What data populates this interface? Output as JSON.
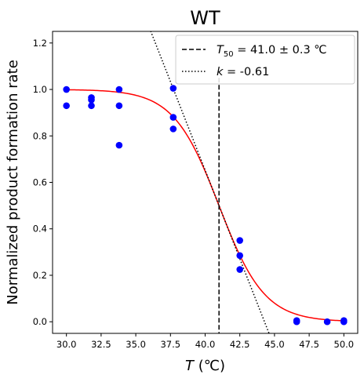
{
  "chart_data": {
    "type": "scatter",
    "title": "WT",
    "xlabel_var": "T",
    "xlabel_unit": " (℃)",
    "ylabel": "Normalized product formation rate",
    "xlim": [
      29.0,
      51.0
    ],
    "ylim": [
      -0.05,
      1.25
    ],
    "x_ticks": [
      "30.0",
      "32.5",
      "35.0",
      "37.5",
      "40.0",
      "42.5",
      "45.0",
      "47.5",
      "50.0"
    ],
    "y_ticks": [
      "0.0",
      "0.2",
      "0.4",
      "0.6",
      "0.8",
      "1.0",
      "1.2"
    ],
    "points": [
      {
        "x": 30.0,
        "y": 1.0
      },
      {
        "x": 30.0,
        "y": 0.93
      },
      {
        "x": 31.8,
        "y": 0.965
      },
      {
        "x": 31.8,
        "y": 0.955
      },
      {
        "x": 31.8,
        "y": 0.93
      },
      {
        "x": 33.8,
        "y": 1.0
      },
      {
        "x": 33.8,
        "y": 0.93
      },
      {
        "x": 33.8,
        "y": 0.76
      },
      {
        "x": 37.7,
        "y": 1.005
      },
      {
        "x": 37.7,
        "y": 0.88
      },
      {
        "x": 37.7,
        "y": 0.83
      },
      {
        "x": 42.5,
        "y": 0.35
      },
      {
        "x": 42.5,
        "y": 0.285
      },
      {
        "x": 42.5,
        "y": 0.225
      },
      {
        "x": 46.6,
        "y": 0.005
      },
      {
        "x": 46.6,
        "y": 0.0
      },
      {
        "x": 48.8,
        "y": 0.0
      },
      {
        "x": 50.0,
        "y": 0.005
      },
      {
        "x": 50.0,
        "y": 0.0
      }
    ],
    "fit": {
      "type": "sigmoid",
      "t50": 41.0,
      "slope": 0.61,
      "x_range": [
        30.0,
        50.0
      ]
    },
    "t50_line_x": 41.0,
    "tangent_x_range": [
      35.0,
      46.0
    ],
    "legend": {
      "position": "top-right",
      "t50_sym": "T",
      "t50_sub": "50",
      "t50_value": " = 41.0 ± 0.3 ℃",
      "k_sym": "k",
      "k_value": " = -0.61"
    },
    "colors": {
      "points": "#0000ff",
      "fit": "#ff0000",
      "lines": "#000000"
    }
  }
}
